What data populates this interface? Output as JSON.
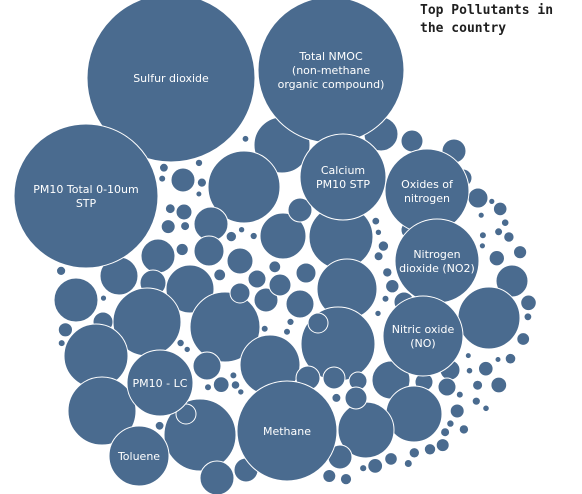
{
  "chart_data": {
    "type": "bubble",
    "title": "Top Pollutants in the country",
    "color": "#4a6b8f",
    "label_color": "#ffffff",
    "bubbles": [
      {
        "label": "Sulfur dioxide"
      },
      {
        "label": "Total NMOC (non-methane organic compound)"
      },
      {
        "label": "PM10 Total 0-10um STP"
      },
      {
        "label": "Calcium PM10 STP"
      },
      {
        "label": "Oxides of nitrogen"
      },
      {
        "label": "Nitrogen dioxide (NO2)"
      },
      {
        "label": "Nitric oxide (NO)"
      },
      {
        "label": "PM10 - LC"
      },
      {
        "label": "Methane"
      },
      {
        "label": "Toluene"
      }
    ]
  }
}
